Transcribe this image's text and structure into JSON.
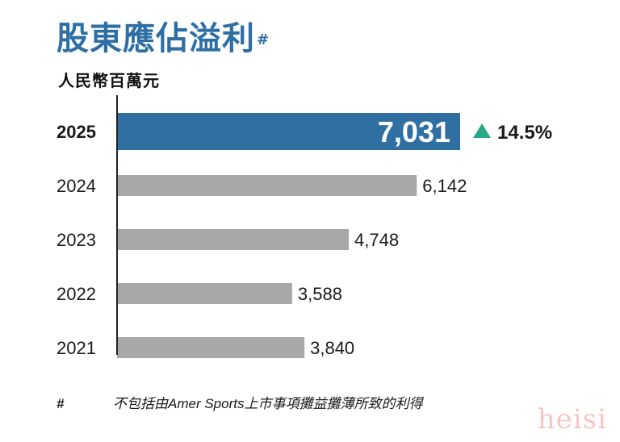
{
  "header": {
    "title": "股東應佔溢利",
    "title_mark": "#",
    "unit": "人民幣百萬元"
  },
  "colors": {
    "title": "#2d6fa4",
    "highlight_bar": "#2f6fa2",
    "other_bars": "#a8a8a8",
    "growth_arrow": "#2aa889"
  },
  "chart_data": {
    "type": "bar",
    "orientation": "horizontal",
    "categories": [
      "2025",
      "2024",
      "2023",
      "2022",
      "2021"
    ],
    "values": [
      7031,
      6142,
      4748,
      3588,
      3840
    ],
    "value_labels": [
      "7,031",
      "6,142",
      "4,748",
      "3,588",
      "3,840"
    ],
    "highlight": "2025",
    "annotation": {
      "category": "2025",
      "text": "14.5%",
      "icon": "up-triangle-icon"
    },
    "title": "股東應佔溢利",
    "ylabel": "人民幣百萬元",
    "xlim": [
      0,
      7400
    ],
    "grid": false,
    "legend": "none"
  },
  "footnote": {
    "mark": "#",
    "text": "不包括由Amer Sports上市事項攤益攤薄所致的利得"
  },
  "watermark": "heisi"
}
